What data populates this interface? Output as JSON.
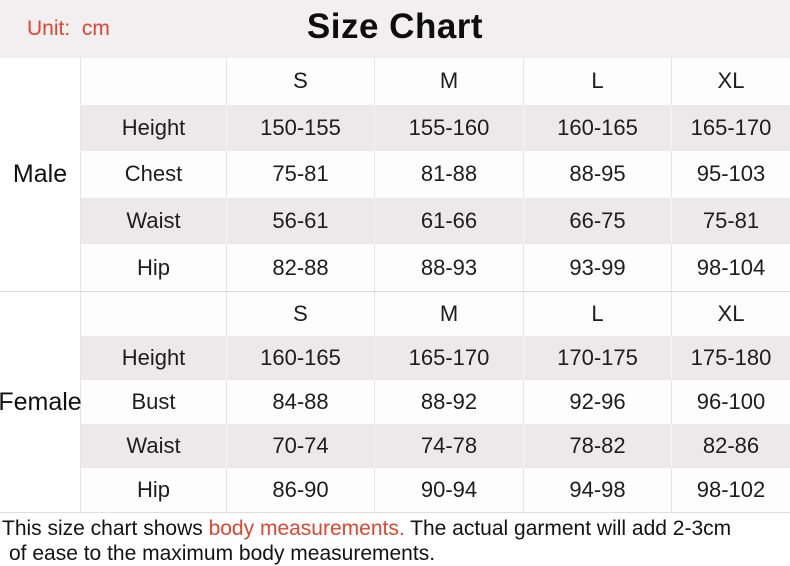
{
  "header": {
    "unit_label": "Unit:  cm"
  },
  "chart_data": {
    "type": "table",
    "title": "Size Chart",
    "unit": "cm",
    "columns": [
      "S",
      "M",
      "L",
      "XL"
    ],
    "sections": [
      {
        "group": "Male",
        "rows": [
          {
            "label": "Height",
            "values": [
              "150-155",
              "155-160",
              "160-165",
              "165-170"
            ]
          },
          {
            "label": "Chest",
            "values": [
              "75-81",
              "81-88",
              "88-95",
              "95-103"
            ]
          },
          {
            "label": "Waist",
            "values": [
              "56-61",
              "61-66",
              "66-75",
              "75-81"
            ]
          },
          {
            "label": "Hip",
            "values": [
              "82-88",
              "88-93",
              "93-99",
              "98-104"
            ]
          }
        ]
      },
      {
        "group": "Female",
        "rows": [
          {
            "label": "Height",
            "values": [
              "160-165",
              "165-170",
              "170-175",
              "175-180"
            ]
          },
          {
            "label": "Bust",
            "values": [
              "84-88",
              "88-92",
              "92-96",
              "96-100"
            ]
          },
          {
            "label": "Waist",
            "values": [
              "70-74",
              "74-78",
              "78-82",
              "82-86"
            ]
          },
          {
            "label": "Hip",
            "values": [
              "86-90",
              "90-94",
              "94-98",
              "98-102"
            ]
          }
        ]
      }
    ]
  },
  "footer": {
    "line1_before": "This size chart shows ",
    "line1_highlight": "body measurements.",
    "line1_after": " The actual garment will add 2-3cm",
    "line2": "of ease to the maximum body measurements."
  },
  "colors": {
    "accent_red": "#dd4631",
    "banner_bg": "#f1efef",
    "row_stripe": "#ebe9e9",
    "border": "#e6e4e4"
  }
}
